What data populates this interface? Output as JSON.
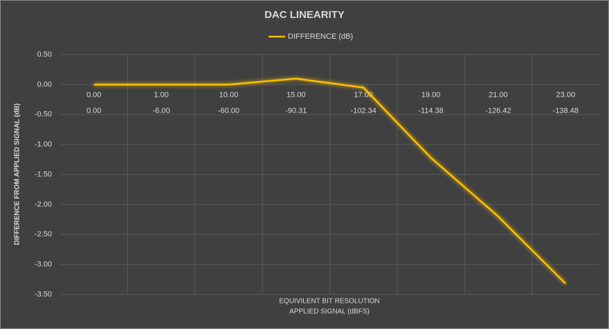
{
  "chart_data": {
    "type": "line",
    "title": "DAC LINEARITY",
    "categories": [
      "0.00",
      "1.00",
      "10.00",
      "15.00",
      "17.00",
      "19.00",
      "21.00",
      "23.00"
    ],
    "secondary_categories": [
      "0.00",
      "-6.00",
      "-60.00",
      "-90.31",
      "-102.34",
      "-114.38",
      "-126.42",
      "-138.48"
    ],
    "series": [
      {
        "name": "DIFFERENCE (dB)",
        "color": "#ffc000",
        "values": [
          0,
          0,
          0,
          0.1,
          -0.05,
          -1.22,
          -2.2,
          -3.32
        ]
      }
    ],
    "ylim": [
      -3.5,
      0.5
    ],
    "yticks": [
      {
        "value": 0.5,
        "label": "0.50"
      },
      {
        "value": 0,
        "label": "0.00"
      },
      {
        "value": -0.5,
        "label": "-0.50"
      },
      {
        "value": -1,
        "label": "-1.00"
      },
      {
        "value": -1.5,
        "label": "-1.50"
      },
      {
        "value": -2,
        "label": "-2.00"
      },
      {
        "value": -2.5,
        "label": "-2.50"
      },
      {
        "value": -3,
        "label": "-3.00"
      },
      {
        "value": -3.5,
        "label": "-3.50"
      }
    ],
    "y_label": "DIFFERENCE FROM APPLIED SIGNAL (dB)",
    "x_label": [
      "EQUIVILENT BIT RESOLUTION",
      "APPLIED SIGNAL (dBFS)"
    ],
    "legend": "top",
    "grid": true
  }
}
